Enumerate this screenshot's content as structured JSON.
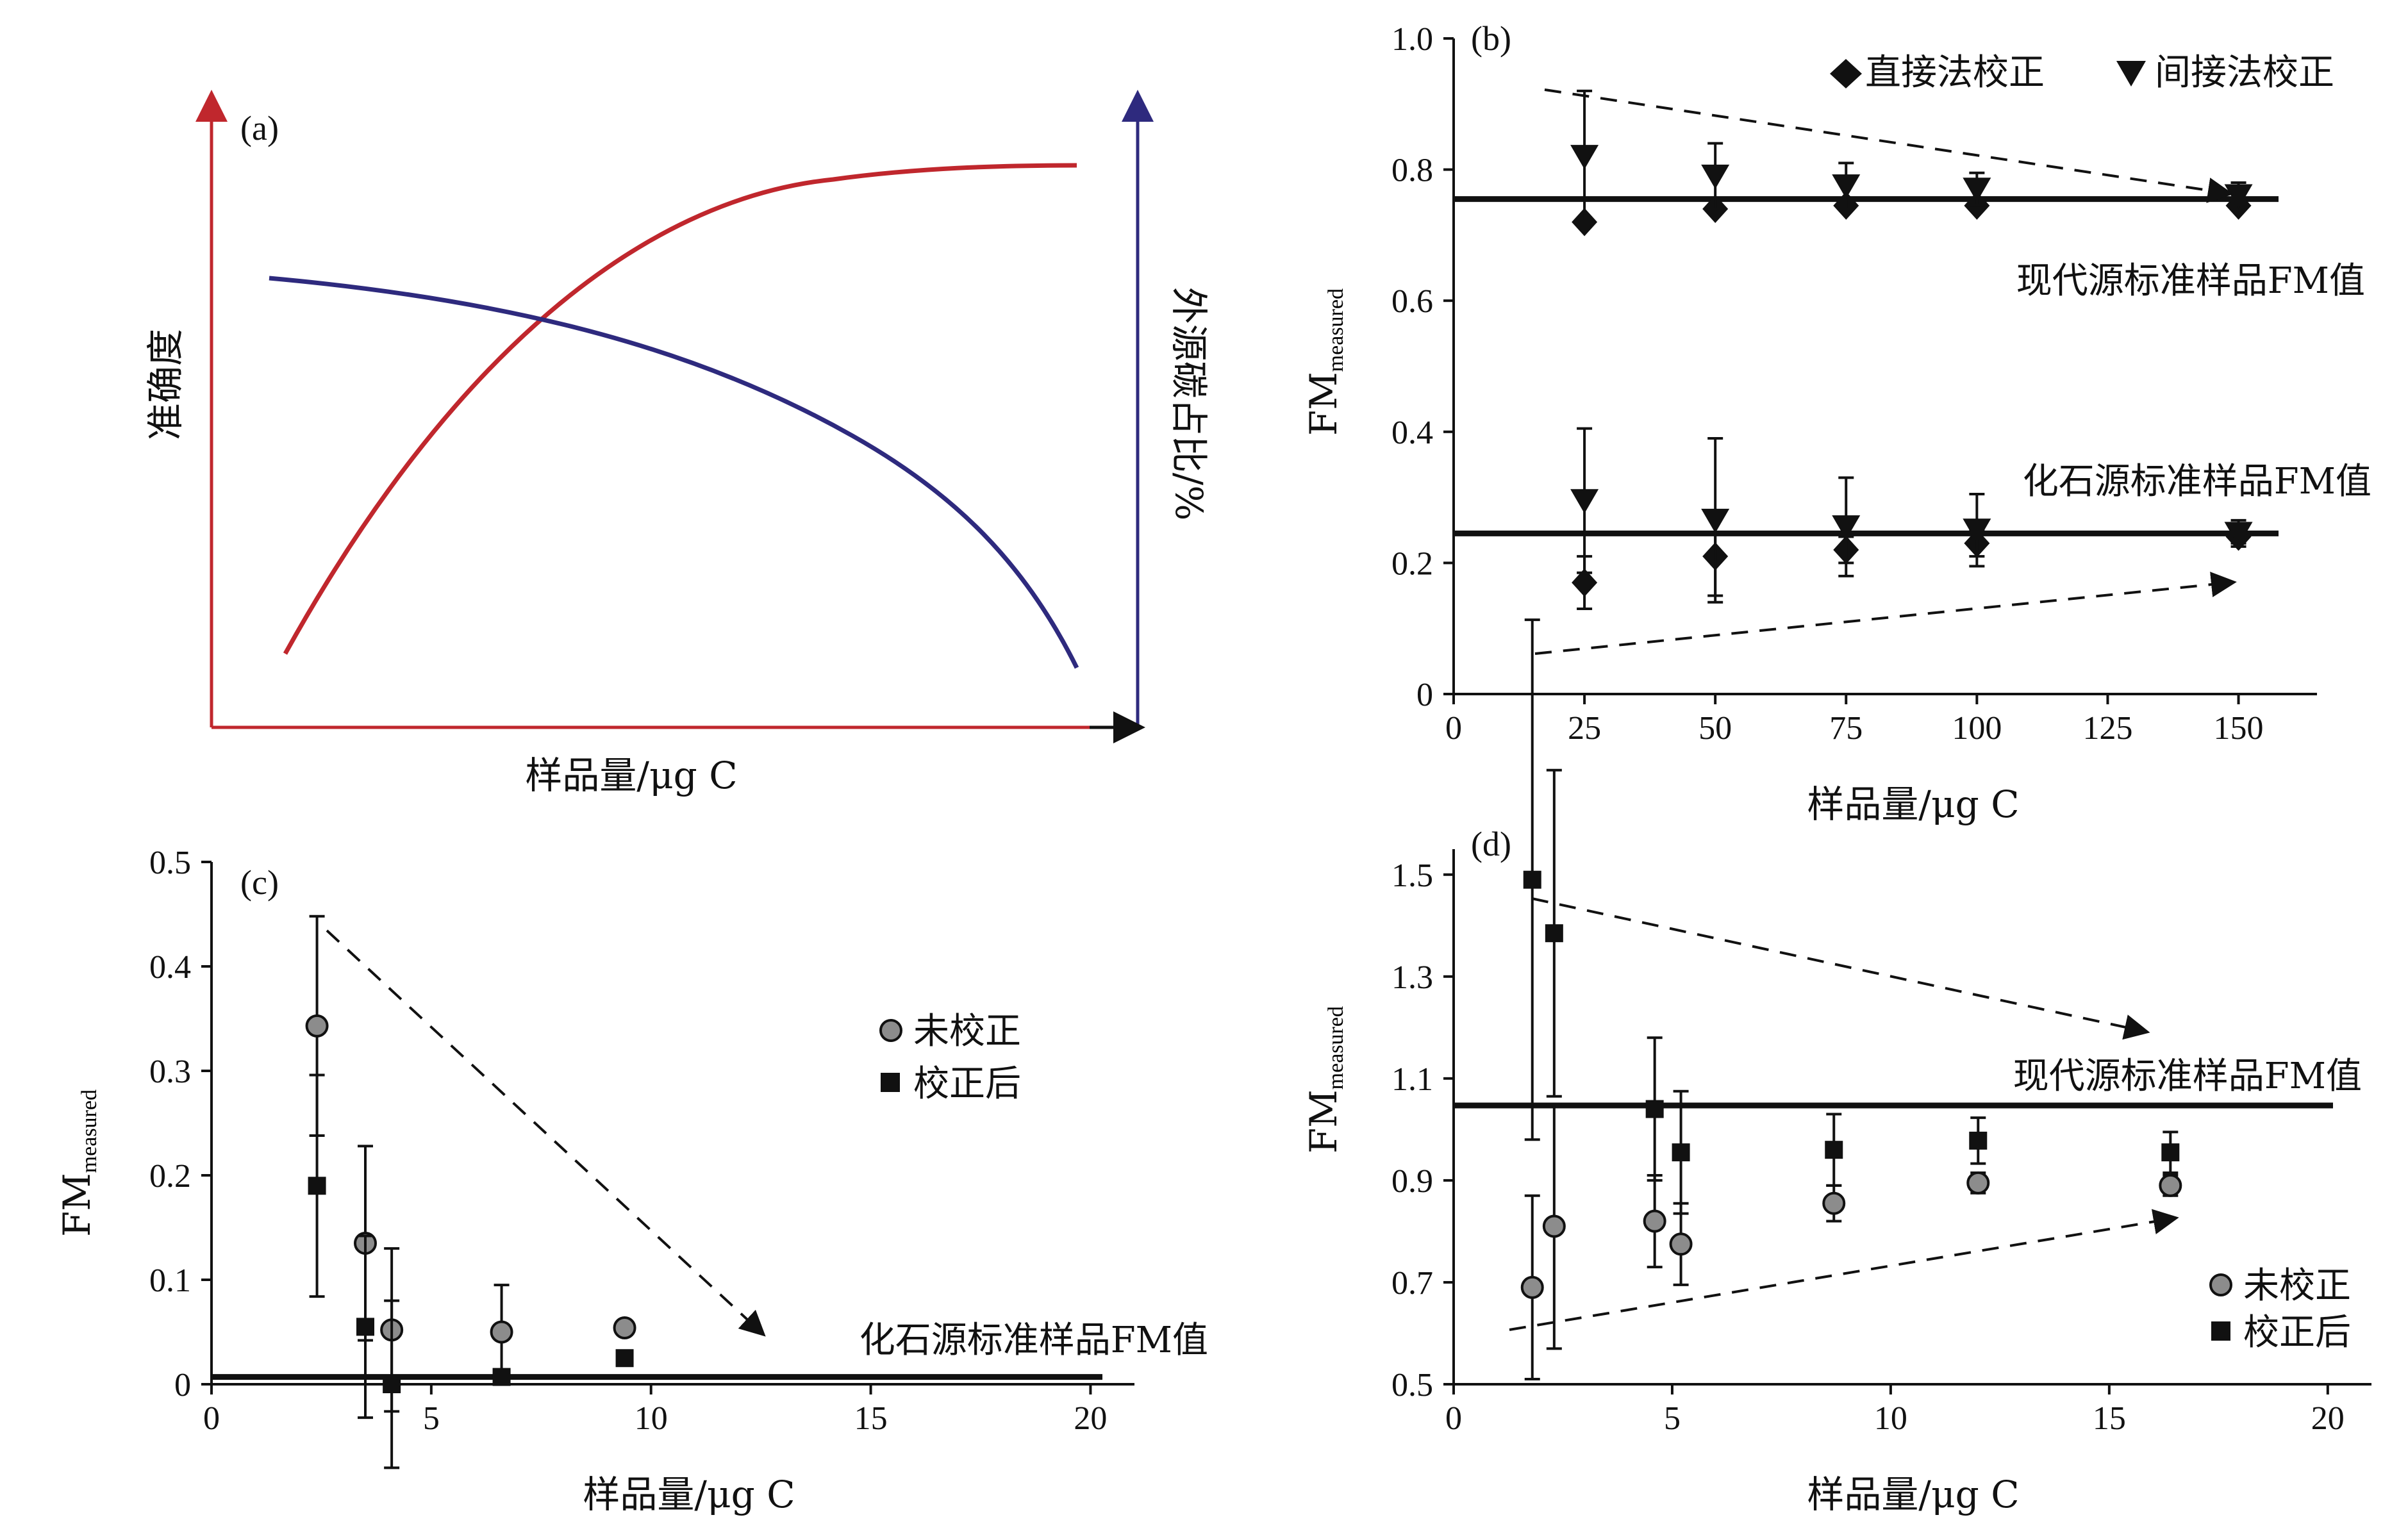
{
  "chart_data": [
    {
      "panel": "(a)",
      "type": "line",
      "xlabel": "样品量/μg C",
      "ylabel": "准确度",
      "y2label": "外源碳占比/%",
      "series": [
        {
          "role": "accuracy",
          "color": "#c0272d",
          "axis": "left"
        },
        {
          "role": "exogenous",
          "color": "#2e2a7e",
          "axis": "right"
        }
      ]
    },
    {
      "panel": "(b)",
      "type": "scatter",
      "xlabel": "样品量/μg C",
      "ylabel_main": "FM",
      "ylabel_sub": "measured",
      "xlim": [
        0,
        165
      ],
      "ylim": [
        0,
        1.0
      ],
      "xticks": [
        "0",
        "25",
        "50",
        "75",
        "100",
        "125",
        "150"
      ],
      "yticks": [
        "0",
        "0.2",
        "0.4",
        "0.6",
        "0.8",
        "1.0"
      ],
      "legend": [
        "直接法校正",
        "间接法校正"
      ],
      "reference_lines": [
        {
          "label": "现代源标准样品FM值",
          "y": 0.755
        },
        {
          "label": "化石源标准样品FM值",
          "y": 0.245
        }
      ],
      "series": [
        {
          "name": "直接法校正",
          "marker": "diamond",
          "x": [
            25,
            50,
            75,
            100,
            150
          ],
          "y": [
            0.72,
            0.74,
            0.745,
            0.745,
            0.745
          ]
        },
        {
          "name": "间接法校正",
          "marker": "triangle-down",
          "x": [
            25,
            50,
            75,
            100,
            150
          ],
          "y": [
            0.82,
            0.79,
            0.775,
            0.77,
            0.76
          ],
          "err": [
            0.1,
            0.05,
            0.035,
            0.025,
            0.02
          ]
        },
        {
          "name": "直接法校正",
          "marker": "diamond",
          "x": [
            25,
            50,
            75,
            100,
            150
          ],
          "y": [
            0.17,
            0.21,
            0.22,
            0.23,
            0.24
          ],
          "err": [
            0.04,
            0.06,
            0.02,
            0.02,
            0.01
          ]
        },
        {
          "name": "间接法校正",
          "marker": "triangle-down",
          "x": [
            25,
            50,
            75,
            100,
            150
          ],
          "y": [
            0.295,
            0.265,
            0.255,
            0.25,
            0.245
          ],
          "err": [
            0.11,
            0.125,
            0.075,
            0.055,
            0.02
          ]
        }
      ]
    },
    {
      "panel": "(c)",
      "type": "scatter",
      "xlabel": "样品量/μg C",
      "ylabel_main": "FM",
      "ylabel_sub": "measured",
      "xlim": [
        0,
        21
      ],
      "ylim": [
        0,
        0.5
      ],
      "xticks": [
        "0",
        "5",
        "10",
        "15",
        "20"
      ],
      "yticks": [
        "0",
        "0.1",
        "0.2",
        "0.3",
        "0.4",
        "0.5"
      ],
      "legend": [
        "未校正",
        "校正后"
      ],
      "reference_lines": [
        {
          "label": "化石源标准样品FM值",
          "y": 0.007
        }
      ],
      "series": [
        {
          "name": "未校正",
          "marker": "circle",
          "x": [
            2.4,
            3.5,
            4.1,
            6.6,
            9.4
          ],
          "y": [
            0.343,
            0.135,
            0.052,
            0.05,
            0.054
          ],
          "err": [
            0.105,
            0.093,
            0.078,
            0.045,
            0.0
          ]
        },
        {
          "name": "校正后",
          "marker": "square",
          "x": [
            2.4,
            3.5,
            4.1,
            6.6,
            9.4
          ],
          "y": [
            0.19,
            0.055,
            0.0,
            0.007,
            0.025
          ],
          "err": [
            0.106,
            0.087,
            0.08,
            0.0,
            0.0
          ]
        }
      ]
    },
    {
      "panel": "(d)",
      "type": "scatter",
      "xlabel": "样品量/μg C",
      "ylabel_main": "FM",
      "ylabel_sub": "measured",
      "xlim": [
        0,
        21
      ],
      "ylim": [
        0.5,
        1.55
      ],
      "xticks": [
        "0",
        "5",
        "10",
        "15",
        "20"
      ],
      "yticks": [
        "0.5",
        "0.7",
        "0.9",
        "1.1",
        "1.3",
        "1.5"
      ],
      "legend": [
        "未校正",
        "校正后"
      ],
      "reference_lines": [
        {
          "label": "现代源标准样品FM值",
          "y": 1.047
        }
      ],
      "series": [
        {
          "name": "未校正",
          "marker": "circle",
          "x": [
            1.8,
            2.3,
            4.6,
            5.2,
            8.7,
            12.0,
            16.4
          ],
          "y": [
            0.69,
            0.81,
            0.82,
            0.775,
            0.855,
            0.895,
            0.89
          ],
          "err": [
            0.18,
            0.24,
            0.09,
            0.08,
            0.035,
            0.02,
            0.02
          ]
        },
        {
          "name": "校正后",
          "marker": "square",
          "x": [
            1.8,
            2.3,
            4.6,
            5.2,
            8.7,
            12.0,
            16.4
          ],
          "y": [
            1.49,
            1.385,
            1.04,
            0.955,
            0.96,
            0.978,
            0.955
          ],
          "err": [
            0.51,
            0.32,
            0.14,
            0.12,
            0.07,
            0.045,
            0.04
          ]
        }
      ]
    }
  ]
}
